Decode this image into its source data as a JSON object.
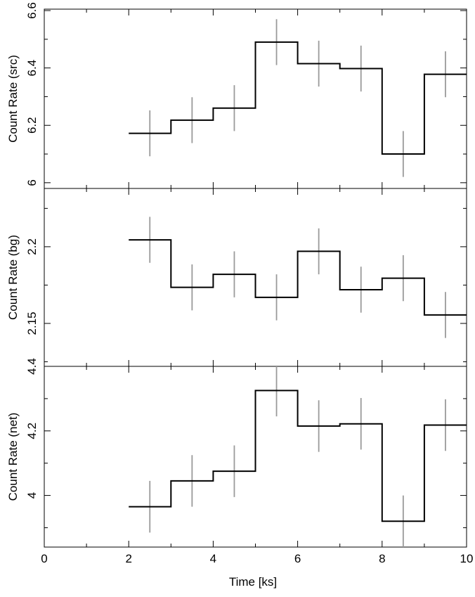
{
  "chart_data": [
    {
      "type": "line",
      "step": true,
      "ylabel": "Count Rate (src)",
      "ylim": [
        5.98,
        6.605
      ],
      "yticks": [
        6,
        6.2,
        6.4,
        6.6
      ],
      "ytick_labels": [
        "6",
        "6.2",
        "6.4",
        "6.6"
      ],
      "bin_edges": [
        2,
        3,
        4,
        5,
        6,
        7,
        8,
        9,
        10
      ],
      "x": [
        2.5,
        3.5,
        4.5,
        5.5,
        6.5,
        7.5,
        8.5,
        9.5
      ],
      "values": [
        6.172,
        6.218,
        6.26,
        6.49,
        6.415,
        6.398,
        6.1,
        6.378
      ],
      "errors": [
        0.08,
        0.08,
        0.08,
        0.08,
        0.08,
        0.08,
        0.08,
        0.08
      ],
      "xlim": [
        0,
        10
      ]
    },
    {
      "type": "line",
      "step": true,
      "ylabel": "Count Rate (bg)",
      "ylim": [
        2.122,
        2.238
      ],
      "yticks": [
        2.15,
        2.2
      ],
      "ytick_labels": [
        "2.15",
        "2.2"
      ],
      "bin_edges": [
        2,
        3,
        4,
        5,
        6,
        7,
        8,
        9,
        10
      ],
      "x": [
        2.5,
        3.5,
        4.5,
        5.5,
        6.5,
        7.5,
        8.5,
        9.5
      ],
      "values": [
        2.2045,
        2.1735,
        2.182,
        2.167,
        2.197,
        2.172,
        2.1795,
        2.1555
      ],
      "errors": [
        0.015,
        0.015,
        0.015,
        0.015,
        0.015,
        0.015,
        0.015,
        0.015
      ],
      "xlim": [
        0,
        10
      ]
    },
    {
      "type": "line",
      "step": true,
      "ylabel": "Count Rate (net)",
      "ylim": [
        3.84,
        4.4
      ],
      "yticks": [
        4,
        4.2,
        4.4
      ],
      "ytick_labels": [
        "4",
        "4.2",
        "4.4"
      ],
      "bin_edges": [
        2,
        3,
        4,
        5,
        6,
        7,
        8,
        9,
        10
      ],
      "x": [
        2.5,
        3.5,
        4.5,
        5.5,
        6.5,
        7.5,
        8.5,
        9.5
      ],
      "values": [
        3.965,
        4.045,
        4.075,
        4.325,
        4.215,
        4.222,
        3.92,
        4.218
      ],
      "errors": [
        0.08,
        0.08,
        0.08,
        0.08,
        0.08,
        0.08,
        0.08,
        0.08
      ],
      "xlim": [
        0,
        10
      ],
      "xticks": [
        0,
        2,
        4,
        6,
        8,
        10
      ],
      "xtick_labels": [
        "0",
        "2",
        "4",
        "6",
        "8",
        "10"
      ],
      "xlabel": "Time [ks]"
    }
  ]
}
